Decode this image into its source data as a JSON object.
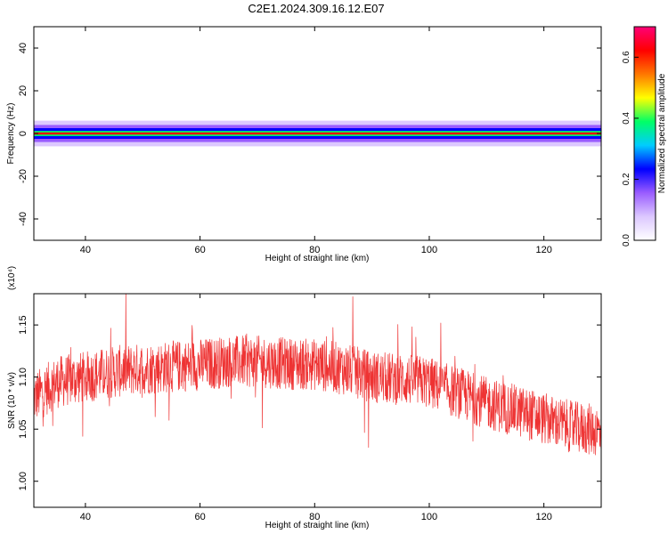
{
  "title": "C2E1.2024.309.16.12.E07",
  "colors": {
    "snr_line": "#ee3333",
    "axis": "#000000"
  },
  "chart_data": [
    {
      "type": "heatmap",
      "xlabel": "Height of straight line (km)",
      "ylabel": "Frequency (Hz)",
      "xlim": [
        31,
        130
      ],
      "ylim": [
        -50,
        50
      ],
      "x_ticks": [
        40,
        60,
        80,
        100,
        120
      ],
      "y_ticks": [
        40,
        20,
        0,
        -20,
        -40
      ],
      "colorbar": {
        "label": "Normalized spectral amplitude",
        "range": [
          0,
          0.7
        ],
        "ticks": [
          "0.0",
          "0.2",
          "0.4",
          "0.6"
        ],
        "tick_values": [
          0,
          0.2,
          0.4,
          0.6
        ],
        "colormap": [
          "#ffffff",
          "#dcc8ff",
          "#9a5cff",
          "#0000ff",
          "#00ccff",
          "#00ff66",
          "#ffff00",
          "#ff7700",
          "#ff0000",
          "#ff0077"
        ]
      },
      "bands": [
        {
          "half_width_hz": 6,
          "amplitude": 0.04
        },
        {
          "half_width_hz": 4,
          "amplitude": 0.12
        },
        {
          "half_width_hz": 2.5,
          "amplitude": 0.24
        },
        {
          "half_width_hz": 1.2,
          "amplitude": 0.4
        },
        {
          "half_width_hz": 0.5,
          "amplitude": 0.62
        }
      ]
    },
    {
      "type": "line",
      "xlabel": "Height of straight line (km)",
      "ylabel": "SNR (10 * v/v)",
      "scale_label": "(x10⁴)",
      "xlim": [
        31,
        130
      ],
      "ylim": [
        0.975,
        1.18
      ],
      "x_ticks": [
        40,
        60,
        80,
        100,
        120
      ],
      "y_ticks": [
        1.0,
        1.05,
        1.1,
        1.15
      ],
      "y_tick_labels": [
        "1.00",
        "1.05",
        "1.10",
        "1.15"
      ],
      "series": [
        {
          "x": [
            31,
            35,
            40,
            45,
            50,
            55,
            60,
            65,
            70,
            75,
            80,
            85,
            90,
            95,
            100,
            102,
            105,
            110,
            115,
            120,
            125,
            130
          ],
          "y": [
            1.08,
            1.095,
            1.1,
            1.105,
            1.108,
            1.11,
            1.112,
            1.115,
            1.115,
            1.113,
            1.112,
            1.108,
            1.1,
            1.098,
            1.095,
            1.09,
            1.085,
            1.075,
            1.068,
            1.06,
            1.052,
            1.048
          ],
          "spread": 0.025
        }
      ]
    }
  ]
}
